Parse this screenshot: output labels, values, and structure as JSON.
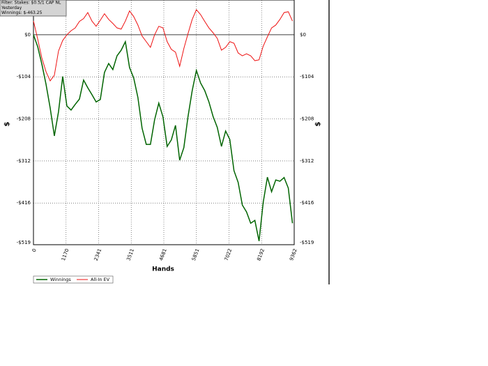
{
  "chart_data": {
    "type": "line",
    "info": [
      "Filter: Stakes: $0.5/1 CAP NL",
      "Yesterday",
      "Winnings: $-463.25"
    ],
    "xlabel": "Hands",
    "ylabel": "$",
    "xlim": [
      0,
      9362
    ],
    "ylim": [
      -519,
      86
    ],
    "xticks": [
      0,
      1170,
      2341,
      3511,
      4681,
      5851,
      7022,
      8192,
      9362
    ],
    "yticks": [
      {
        "value": 0,
        "label": "$0"
      },
      {
        "value": -104,
        "label": "-$104"
      },
      {
        "value": -208,
        "label": "-$208"
      },
      {
        "value": -312,
        "label": "-$312"
      },
      {
        "value": -416,
        "label": "-$416"
      },
      {
        "value": -519,
        "label": "-$519"
      }
    ],
    "grid": true,
    "x": [
      0,
      150,
      300,
      450,
      600,
      750,
      900,
      1050,
      1200,
      1350,
      1500,
      1650,
      1800,
      1950,
      2100,
      2250,
      2400,
      2550,
      2700,
      2850,
      3000,
      3150,
      3300,
      3450,
      3600,
      3750,
      3900,
      4050,
      4200,
      4350,
      4500,
      4650,
      4800,
      4950,
      5100,
      5250,
      5400,
      5550,
      5700,
      5850,
      6000,
      6150,
      6300,
      6450,
      6600,
      6750,
      6900,
      7050,
      7200,
      7350,
      7500,
      7650,
      7800,
      7950,
      8100,
      8250,
      8400,
      8550,
      8700,
      8850,
      9000,
      9150,
      9300
    ],
    "series": [
      {
        "name": "Winnings",
        "color": "#006400",
        "values": [
          0,
          -29,
          -72,
          -122,
          -181,
          -250,
          -190,
          -103,
          -176,
          -186,
          -172,
          -159,
          -112,
          -131,
          -148,
          -166,
          -160,
          -93,
          -71,
          -86,
          -52,
          -38,
          -17,
          -81,
          -107,
          -155,
          -231,
          -271,
          -271,
          -210,
          -169,
          -203,
          -276,
          -260,
          -224,
          -310,
          -279,
          -202,
          -138,
          -88,
          -119,
          -138,
          -166,
          -202,
          -229,
          -276,
          -238,
          -259,
          -336,
          -365,
          -421,
          -438,
          -466,
          -459,
          -510,
          -414,
          -352,
          -388,
          -359,
          -362,
          -353,
          -379,
          -466
        ]
      },
      {
        "name": "All-In EV",
        "color": "#ee1111",
        "values": [
          34,
          -10,
          -57,
          -91,
          -114,
          -100,
          -40,
          -14,
          0,
          10,
          17,
          33,
          40,
          55,
          34,
          21,
          36,
          52,
          38,
          28,
          17,
          14,
          34,
          59,
          45,
          24,
          -3,
          -17,
          -31,
          0,
          21,
          17,
          -17,
          -36,
          -43,
          -78,
          -34,
          3,
          38,
          62,
          50,
          33,
          17,
          5,
          -9,
          -38,
          -31,
          -17,
          -21,
          -45,
          -52,
          -47,
          -52,
          -64,
          -62,
          -28,
          -5,
          17,
          24,
          38,
          55,
          57,
          34
        ]
      }
    ]
  }
}
